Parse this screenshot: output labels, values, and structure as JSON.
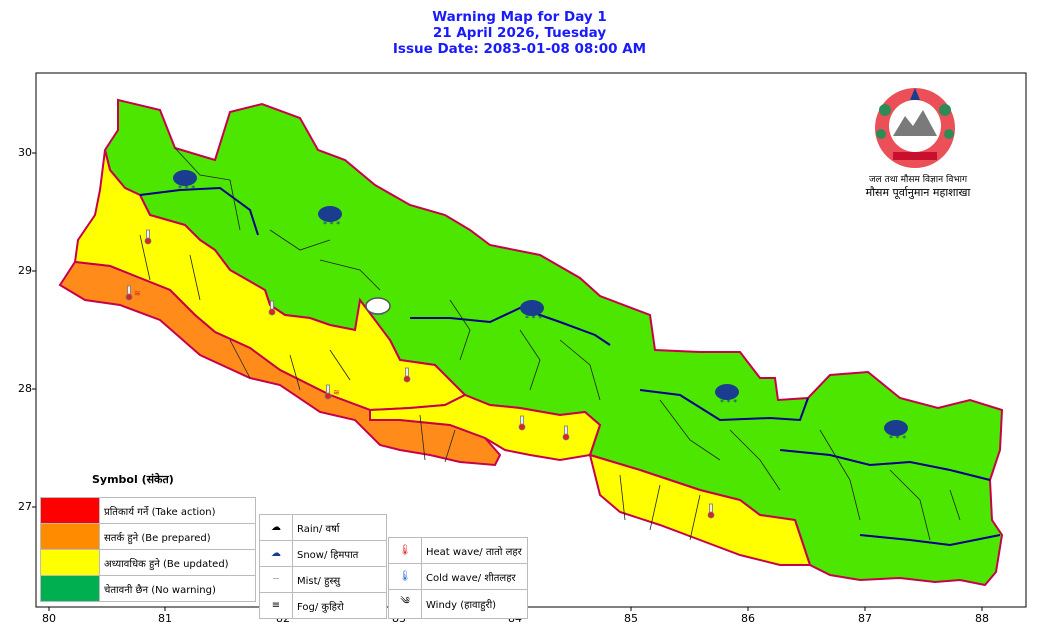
{
  "header": {
    "line1": "Warning Map for Day 1",
    "line2": "21 April 2026, Tuesday",
    "line3": "Issue Date: 2083-01-08 08:00 AM"
  },
  "axes": {
    "x_ticks": [
      "80",
      "81",
      "82",
      "83",
      "84",
      "85",
      "86",
      "87",
      "88"
    ],
    "y_ticks": [
      "30",
      "29",
      "28",
      "27"
    ]
  },
  "department": {
    "line1": "जल तथा मौसम विज्ञान विभाग",
    "line2": "मौसम पूर्वानुमान महाशाखा"
  },
  "legend": {
    "title": "Symbol (संकेत)",
    "levels": [
      {
        "label": "प्रतिकार्य गर्ने (Take action)",
        "color": "#ff0000"
      },
      {
        "label": "सतर्क हुने (Be prepared)",
        "color": "#ff8c00"
      },
      {
        "label": "अध्यावधिक हुने (Be updated)",
        "color": "#ffff00"
      },
      {
        "label": "चेतावनी छैन (No warning)",
        "color": "#00b050"
      }
    ],
    "weather": [
      {
        "icon": "rain-icon",
        "label": "Rain/ वर्षा"
      },
      {
        "icon": "snow-icon",
        "label": "Snow/ हिमपात"
      },
      {
        "icon": "mist-icon",
        "label": "Mist/ हुस्सु"
      },
      {
        "icon": "fog-icon",
        "label": "Fog/ कुहिरो"
      }
    ],
    "hazards": [
      {
        "icon": "heat-wave-icon",
        "label": "Heat wave/ तातो लहर"
      },
      {
        "icon": "cold-wave-icon",
        "label": "Cold wave/ शीतलहर"
      },
      {
        "icon": "windy-icon",
        "label": "Windy (हावाहुरी)"
      }
    ]
  },
  "colors": {
    "title": "#1a1aff",
    "green_map": "#4ce600",
    "yellow_map": "#ffff00",
    "orange_map": "#ff8c1a",
    "province_border": "#c8004b",
    "district_border": "#1a1a1a",
    "zone_border": "#00008b"
  }
}
